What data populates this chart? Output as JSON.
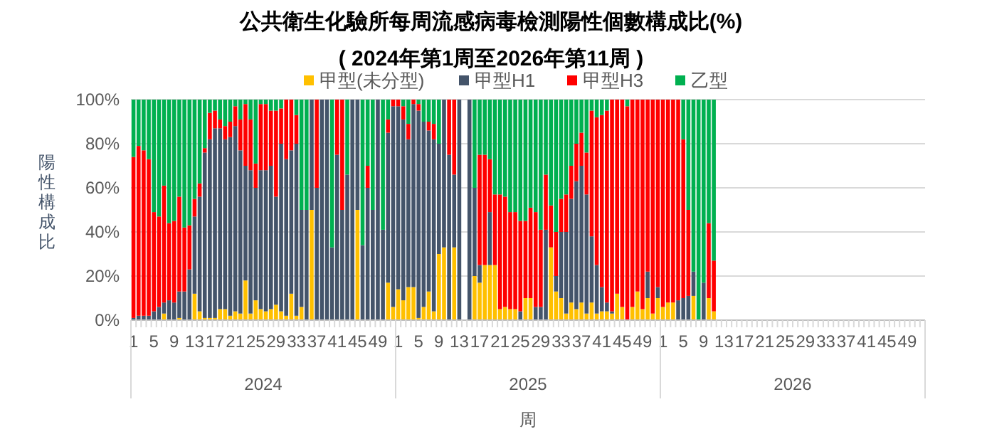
{
  "chart_data": {
    "type": "bar",
    "stacked": true,
    "title": "公共衛生化驗所每周流感病毒檢測陽性個數構成比(%)",
    "subtitle": "( 2024年第1周至2026年第11周 )",
    "xlabel": "周",
    "ylabel": "陽性構成比",
    "annotations": [
      "2024",
      "2025",
      "2026"
    ],
    "legend": "top",
    "grid": "y",
    "ylim": [
      0,
      100
    ],
    "yticks": [
      {
        "value": 0,
        "label": "0%"
      },
      {
        "value": 20,
        "label": "20%"
      },
      {
        "value": 40,
        "label": "40%"
      },
      {
        "value": 60,
        "label": "60%"
      },
      {
        "value": 80,
        "label": "80%"
      },
      {
        "value": 100,
        "label": "100%"
      }
    ],
    "categories": [
      "1",
      null,
      null,
      null,
      "5",
      null,
      null,
      null,
      "9",
      null,
      null,
      null,
      "13",
      null,
      null,
      null,
      "17",
      null,
      null,
      null,
      "21",
      null,
      null,
      null,
      "25",
      null,
      null,
      null,
      "29",
      null,
      null,
      null,
      "33",
      null,
      null,
      null,
      "37",
      null,
      null,
      null,
      "41",
      null,
      null,
      null,
      "45",
      null,
      null,
      null,
      "49",
      null,
      null,
      null,
      "1",
      null,
      null,
      null,
      "5",
      null,
      null,
      null,
      "9",
      null,
      null,
      null,
      "13",
      null,
      null,
      null,
      "17",
      null,
      null,
      null,
      "21",
      null,
      null,
      null,
      "25",
      null,
      null,
      null,
      "29",
      null,
      null,
      null,
      "33",
      null,
      null,
      null,
      "37",
      null,
      null,
      null,
      "41",
      null,
      null,
      null,
      "45",
      null,
      null,
      null,
      "49",
      null,
      null,
      null,
      "1",
      null,
      null,
      null,
      "5",
      null,
      null,
      null,
      "9",
      null,
      null,
      null,
      "13",
      null,
      null,
      null,
      "17",
      null,
      null,
      null,
      "21",
      null,
      null,
      null,
      "25",
      null,
      null,
      null,
      "29",
      null,
      null,
      null,
      "33",
      null,
      null,
      null,
      "37",
      null,
      null,
      null,
      "41",
      null,
      null,
      null,
      "45",
      null,
      null,
      null,
      "49",
      null,
      null,
      null
    ],
    "series": [
      {
        "name": "甲型(未分型)",
        "color": "#ffc000",
        "values": [
          0,
          0,
          0,
          0,
          0,
          0,
          3,
          0,
          0,
          1,
          0,
          0,
          12,
          4,
          1,
          1,
          1,
          5,
          5,
          2,
          4,
          3,
          18,
          3,
          9,
          5,
          4,
          5,
          7,
          4,
          2,
          12,
          2,
          6,
          0,
          50,
          0,
          0,
          0,
          0,
          0,
          0,
          0,
          0,
          50,
          0,
          0,
          0,
          0,
          0,
          17,
          6,
          14,
          9,
          15,
          15,
          1,
          6,
          13,
          4,
          30,
          33,
          0,
          33,
          0,
          null,
          0,
          20,
          17,
          25,
          25,
          25,
          5,
          6,
          5,
          5,
          0,
          10,
          10,
          0,
          0,
          0,
          33,
          13,
          10,
          3,
          8,
          5,
          8,
          3,
          8,
          3,
          4,
          4,
          3,
          12,
          6,
          0,
          6,
          13,
          5,
          10,
          3,
          10,
          6,
          8,
          8,
          0,
          0,
          0,
          11,
          0,
          0,
          10,
          4,
          null,
          null,
          null,
          null,
          null,
          null,
          null,
          null,
          null,
          null,
          null,
          null,
          null,
          null,
          null,
          null,
          null,
          null,
          null,
          null,
          null,
          null,
          null,
          null,
          null,
          null,
          null,
          null,
          null,
          null,
          null,
          null,
          null,
          null,
          null,
          null,
          null,
          null,
          null,
          null,
          null
        ]
      },
      {
        "name": "甲型H1",
        "color": "#44546a",
        "values": [
          1,
          2,
          2,
          2,
          4,
          6,
          5,
          9,
          8,
          12,
          13,
          23,
          35,
          52,
          75,
          81,
          86,
          82,
          77,
          81,
          84,
          74,
          52,
          65,
          51,
          63,
          64,
          65,
          49,
          76,
          71,
          65,
          78,
          44,
          50,
          50,
          60,
          100,
          100,
          33,
          75,
          50,
          66,
          100,
          50,
          34,
          60,
          50,
          100,
          41,
          68,
          91,
          83,
          82,
          67,
          83,
          94,
          84,
          73,
          78,
          50,
          67,
          75,
          33,
          100,
          null,
          100,
          40,
          8,
          0,
          24,
          0,
          0,
          0,
          0,
          0,
          4,
          0,
          0,
          6,
          6,
          41,
          0,
          7,
          30,
          37,
          47,
          58,
          62,
          54,
          30,
          22,
          11,
          4,
          1,
          0,
          0,
          0,
          0,
          0,
          0,
          12,
          0,
          5,
          0,
          0,
          0,
          9,
          10,
          11,
          11,
          0,
          17,
          0,
          0,
          null,
          null,
          null,
          null,
          null,
          null,
          null,
          null,
          null,
          null,
          null,
          null,
          null,
          null,
          null,
          null,
          null,
          null,
          null,
          null,
          null,
          null,
          null,
          null,
          null,
          null,
          null,
          null,
          null,
          null,
          null,
          null,
          null,
          null,
          null,
          null,
          null,
          null,
          null,
          null,
          null
        ]
      },
      {
        "name": "甲型H3",
        "color": "#ff0000",
        "values": [
          73,
          77,
          75,
          71,
          45,
          41,
          53,
          35,
          37,
          43,
          29,
          20,
          8,
          6,
          2,
          12,
          8,
          4,
          6,
          7,
          9,
          14,
          28,
          23,
          11,
          30,
          30,
          25,
          39,
          16,
          27,
          23,
          13,
          0,
          0,
          0,
          40,
          0,
          0,
          0,
          25,
          50,
          0,
          0,
          0,
          0,
          10,
          0,
          0,
          0,
          6,
          3,
          3,
          6,
          7,
          2,
          3,
          0,
          4,
          7,
          0,
          0,
          25,
          34,
          0,
          null,
          0,
          0,
          50,
          50,
          24,
          32,
          52,
          50,
          44,
          44,
          41,
          35,
          41,
          43,
          35,
          25,
          19,
          20,
          15,
          17,
          15,
          17,
          15,
          19,
          57,
          67,
          78,
          87,
          96,
          88,
          94,
          97,
          94,
          87,
          95,
          78,
          97,
          85,
          94,
          92,
          92,
          91,
          72,
          39,
          0,
          0,
          0,
          34,
          23,
          null,
          null,
          null,
          null,
          null,
          null,
          null,
          null,
          null,
          null,
          null,
          null,
          null,
          null,
          null,
          null,
          null,
          null,
          null,
          null,
          null,
          null,
          null,
          null,
          null,
          null,
          null,
          null,
          null,
          null,
          null,
          null,
          null,
          null,
          null,
          null,
          null,
          null,
          null,
          null,
          null
        ]
      },
      {
        "name": "乙型",
        "color": "#00b050",
        "values": [
          26,
          21,
          23,
          27,
          51,
          53,
          39,
          56,
          55,
          44,
          58,
          57,
          45,
          38,
          22,
          6,
          5,
          9,
          12,
          10,
          3,
          9,
          2,
          9,
          29,
          2,
          2,
          5,
          5,
          4,
          0,
          0,
          7,
          50,
          50,
          0,
          0,
          0,
          0,
          67,
          0,
          0,
          34,
          0,
          0,
          66,
          30,
          50,
          0,
          59,
          9,
          0,
          0,
          3,
          11,
          0,
          2,
          10,
          10,
          11,
          20,
          0,
          0,
          0,
          0,
          null,
          0,
          40,
          25,
          25,
          27,
          43,
          43,
          44,
          51,
          51,
          55,
          55,
          49,
          51,
          59,
          34,
          48,
          60,
          45,
          43,
          30,
          20,
          15,
          24,
          5,
          8,
          7,
          5,
          0,
          0,
          0,
          3,
          0,
          0,
          0,
          0,
          0,
          0,
          0,
          0,
          0,
          0,
          18,
          50,
          78,
          100,
          83,
          56,
          73,
          null,
          null,
          null,
          null,
          null,
          null,
          null,
          null,
          null,
          null,
          null,
          null,
          null,
          null,
          null,
          null,
          null,
          null,
          null,
          null,
          null,
          null,
          null,
          null,
          null,
          null,
          null,
          null,
          null,
          null,
          null,
          null,
          null,
          null,
          null,
          null,
          null,
          null,
          null,
          null,
          null
        ]
      }
    ]
  }
}
